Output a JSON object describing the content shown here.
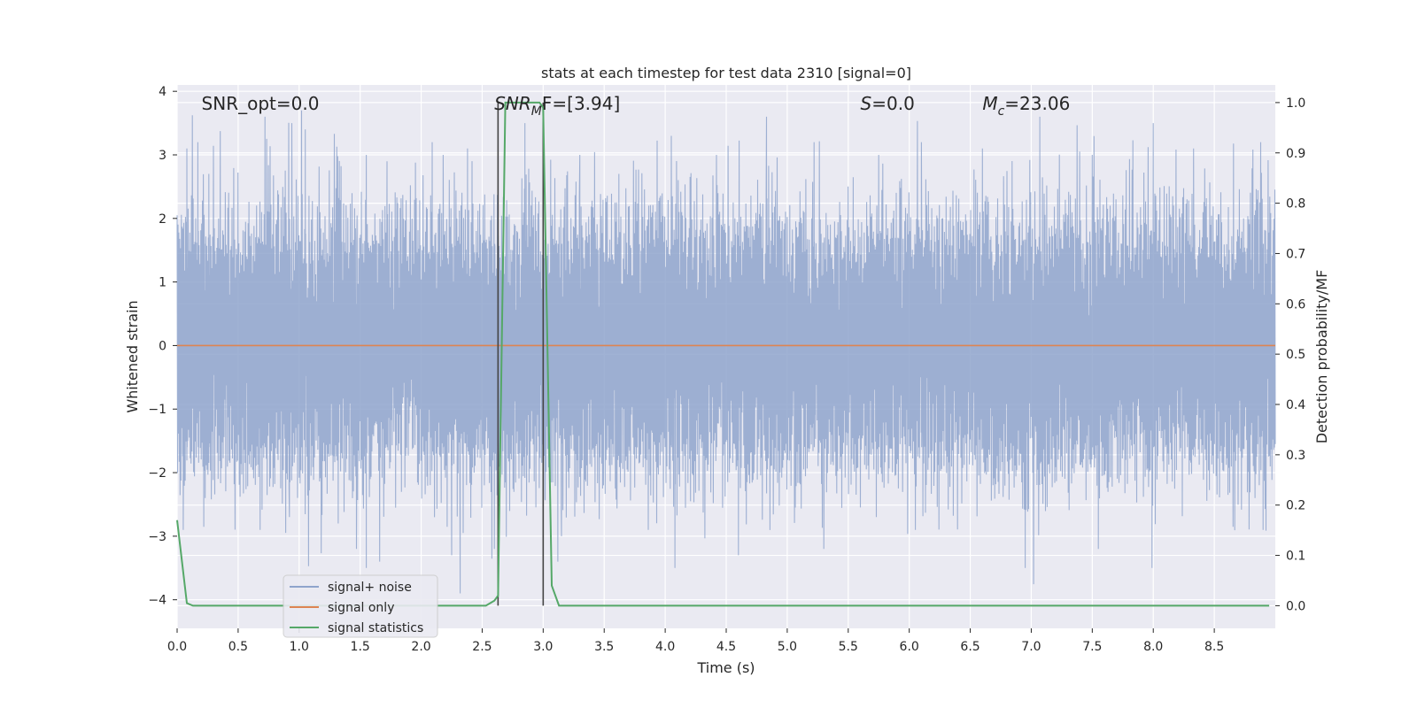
{
  "chart_data": {
    "type": "line",
    "title": "stats at each timestep for test data 2310 [signal=0]",
    "xlabel": "Time (s)",
    "ylabel": "Whitened strain",
    "y2label": "Detection probability/MF",
    "xlim": [
      0,
      9.0
    ],
    "ylim": [
      -4.45,
      4.1
    ],
    "y2lim": [
      -0.045,
      1.035
    ],
    "x_ticks": [
      0.0,
      0.5,
      1.0,
      1.5,
      2.0,
      2.5,
      3.0,
      3.5,
      4.0,
      4.5,
      5.0,
      5.5,
      6.0,
      6.5,
      7.0,
      7.5,
      8.0,
      8.5
    ],
    "x_tick_labels": [
      "0.0",
      "0.5",
      "1.0",
      "1.5",
      "2.0",
      "2.5",
      "3.0",
      "3.5",
      "4.0",
      "4.5",
      "5.0",
      "5.5",
      "6.0",
      "6.5",
      "7.0",
      "7.5",
      "8.0",
      "8.5"
    ],
    "y_ticks": [
      -4,
      -3,
      -2,
      -1,
      0,
      1,
      2,
      3,
      4
    ],
    "y_tick_labels": [
      "−4",
      "−3",
      "−2",
      "−1",
      "0",
      "1",
      "2",
      "3",
      "4"
    ],
    "y2_ticks": [
      0.0,
      0.1,
      0.2,
      0.3,
      0.4,
      0.5,
      0.6,
      0.7,
      0.8,
      0.9,
      1.0
    ],
    "y2_tick_labels": [
      "0.0",
      "0.1",
      "0.2",
      "0.3",
      "0.4",
      "0.5",
      "0.6",
      "0.7",
      "0.8",
      "0.9",
      "1.0"
    ],
    "grid": true,
    "legend_position": "lower-left",
    "annotations": [
      {
        "kind": "plain",
        "text": "SNR_opt=0.0",
        "x": 0.2
      },
      {
        "kind": "sub",
        "base": "SNR",
        "sub": "M",
        "rest": "F=[3.94]",
        "x": 2.6
      },
      {
        "kind": "sub",
        "base": "S",
        "sub": "",
        "rest": "=0.0",
        "x": 5.6
      },
      {
        "kind": "sub",
        "base": "M",
        "sub": "c",
        "rest": "=23.06",
        "x": 6.6
      }
    ],
    "vlines": [
      2.63,
      3.0
    ],
    "series": [
      {
        "name": "signal+ noise",
        "axis": "left",
        "color": "#8fa4cc",
        "opacity": 0.85,
        "note": "whitened noise, dense",
        "peak_times": [
          0.08,
          0.17,
          0.26,
          0.72,
          0.94,
          1.02,
          1.05,
          1.55,
          1.72,
          2.09,
          2.18,
          2.38,
          2.85,
          3.3,
          3.62,
          4.05,
          4.42,
          4.83,
          5.22,
          5.75,
          6.1,
          6.6,
          7.07,
          7.5,
          8.0,
          8.33,
          8.88
        ],
        "peak_values": [
          3.1,
          3.2,
          2.7,
          3.6,
          3.5,
          3.7,
          3.4,
          3.0,
          2.9,
          3.2,
          3.0,
          3.1,
          3.5,
          3.0,
          2.7,
          3.3,
          3.0,
          3.6,
          3.2,
          3.0,
          3.2,
          3.1,
          3.6,
          3.0,
          3.5,
          3.1,
          3.2
        ],
        "trough_times": [
          0.05,
          0.23,
          0.68,
          0.92,
          1.32,
          1.47,
          1.55,
          1.66,
          2.25,
          2.32,
          2.6,
          3.12,
          3.15,
          4.08,
          4.6,
          5.3,
          5.73,
          6.05,
          6.95,
          7.55,
          7.99,
          8.9
        ],
        "trough_values": [
          -2.9,
          -2.4,
          -2.9,
          -2.7,
          -2.8,
          -3.2,
          -3.5,
          -3.4,
          -3.3,
          -3.9,
          -3.2,
          -3.4,
          -3.0,
          -3.5,
          -3.3,
          -3.2,
          -2.7,
          -2.9,
          -3.5,
          -3.2,
          -3.5,
          -2.9
        ]
      },
      {
        "name": "signal only",
        "axis": "left",
        "color": "#dd8452",
        "x": [
          0,
          9.0
        ],
        "y": [
          0,
          0
        ]
      },
      {
        "name": "signal statistics",
        "axis": "right",
        "color": "#55a868",
        "x": [
          0.0,
          0.08,
          0.13,
          2.53,
          2.6,
          2.63,
          2.69,
          2.97,
          3.0,
          3.07,
          3.13,
          8.95
        ],
        "y": [
          0.17,
          0.005,
          0.0,
          0.0,
          0.01,
          0.02,
          1.0,
          1.0,
          0.99,
          0.04,
          0.0,
          0.0
        ]
      }
    ]
  }
}
